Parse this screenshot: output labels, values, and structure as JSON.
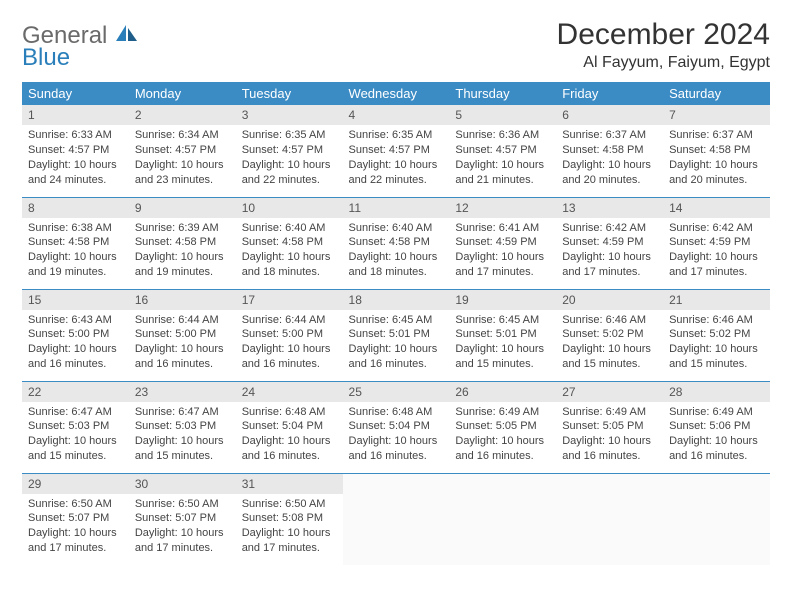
{
  "logo": {
    "text1": "General",
    "text2": "Blue"
  },
  "header": {
    "month_title": "December 2024",
    "location": "Al Fayyum, Faiyum, Egypt"
  },
  "colors": {
    "header_bg": "#3b8bc4",
    "header_text": "#ffffff",
    "daynum_bg": "#e8e8e8",
    "row_divider": "#3b8bc4",
    "logo_gray": "#6a6a6a",
    "logo_blue": "#2a7fba"
  },
  "weekdays": [
    "Sunday",
    "Monday",
    "Tuesday",
    "Wednesday",
    "Thursday",
    "Friday",
    "Saturday"
  ],
  "weeks": [
    [
      {
        "n": "1",
        "sunrise": "Sunrise: 6:33 AM",
        "sunset": "Sunset: 4:57 PM",
        "day1": "Daylight: 10 hours",
        "day2": "and 24 minutes."
      },
      {
        "n": "2",
        "sunrise": "Sunrise: 6:34 AM",
        "sunset": "Sunset: 4:57 PM",
        "day1": "Daylight: 10 hours",
        "day2": "and 23 minutes."
      },
      {
        "n": "3",
        "sunrise": "Sunrise: 6:35 AM",
        "sunset": "Sunset: 4:57 PM",
        "day1": "Daylight: 10 hours",
        "day2": "and 22 minutes."
      },
      {
        "n": "4",
        "sunrise": "Sunrise: 6:35 AM",
        "sunset": "Sunset: 4:57 PM",
        "day1": "Daylight: 10 hours",
        "day2": "and 22 minutes."
      },
      {
        "n": "5",
        "sunrise": "Sunrise: 6:36 AM",
        "sunset": "Sunset: 4:57 PM",
        "day1": "Daylight: 10 hours",
        "day2": "and 21 minutes."
      },
      {
        "n": "6",
        "sunrise": "Sunrise: 6:37 AM",
        "sunset": "Sunset: 4:58 PM",
        "day1": "Daylight: 10 hours",
        "day2": "and 20 minutes."
      },
      {
        "n": "7",
        "sunrise": "Sunrise: 6:37 AM",
        "sunset": "Sunset: 4:58 PM",
        "day1": "Daylight: 10 hours",
        "day2": "and 20 minutes."
      }
    ],
    [
      {
        "n": "8",
        "sunrise": "Sunrise: 6:38 AM",
        "sunset": "Sunset: 4:58 PM",
        "day1": "Daylight: 10 hours",
        "day2": "and 19 minutes."
      },
      {
        "n": "9",
        "sunrise": "Sunrise: 6:39 AM",
        "sunset": "Sunset: 4:58 PM",
        "day1": "Daylight: 10 hours",
        "day2": "and 19 minutes."
      },
      {
        "n": "10",
        "sunrise": "Sunrise: 6:40 AM",
        "sunset": "Sunset: 4:58 PM",
        "day1": "Daylight: 10 hours",
        "day2": "and 18 minutes."
      },
      {
        "n": "11",
        "sunrise": "Sunrise: 6:40 AM",
        "sunset": "Sunset: 4:58 PM",
        "day1": "Daylight: 10 hours",
        "day2": "and 18 minutes."
      },
      {
        "n": "12",
        "sunrise": "Sunrise: 6:41 AM",
        "sunset": "Sunset: 4:59 PM",
        "day1": "Daylight: 10 hours",
        "day2": "and 17 minutes."
      },
      {
        "n": "13",
        "sunrise": "Sunrise: 6:42 AM",
        "sunset": "Sunset: 4:59 PM",
        "day1": "Daylight: 10 hours",
        "day2": "and 17 minutes."
      },
      {
        "n": "14",
        "sunrise": "Sunrise: 6:42 AM",
        "sunset": "Sunset: 4:59 PM",
        "day1": "Daylight: 10 hours",
        "day2": "and 17 minutes."
      }
    ],
    [
      {
        "n": "15",
        "sunrise": "Sunrise: 6:43 AM",
        "sunset": "Sunset: 5:00 PM",
        "day1": "Daylight: 10 hours",
        "day2": "and 16 minutes."
      },
      {
        "n": "16",
        "sunrise": "Sunrise: 6:44 AM",
        "sunset": "Sunset: 5:00 PM",
        "day1": "Daylight: 10 hours",
        "day2": "and 16 minutes."
      },
      {
        "n": "17",
        "sunrise": "Sunrise: 6:44 AM",
        "sunset": "Sunset: 5:00 PM",
        "day1": "Daylight: 10 hours",
        "day2": "and 16 minutes."
      },
      {
        "n": "18",
        "sunrise": "Sunrise: 6:45 AM",
        "sunset": "Sunset: 5:01 PM",
        "day1": "Daylight: 10 hours",
        "day2": "and 16 minutes."
      },
      {
        "n": "19",
        "sunrise": "Sunrise: 6:45 AM",
        "sunset": "Sunset: 5:01 PM",
        "day1": "Daylight: 10 hours",
        "day2": "and 15 minutes."
      },
      {
        "n": "20",
        "sunrise": "Sunrise: 6:46 AM",
        "sunset": "Sunset: 5:02 PM",
        "day1": "Daylight: 10 hours",
        "day2": "and 15 minutes."
      },
      {
        "n": "21",
        "sunrise": "Sunrise: 6:46 AM",
        "sunset": "Sunset: 5:02 PM",
        "day1": "Daylight: 10 hours",
        "day2": "and 15 minutes."
      }
    ],
    [
      {
        "n": "22",
        "sunrise": "Sunrise: 6:47 AM",
        "sunset": "Sunset: 5:03 PM",
        "day1": "Daylight: 10 hours",
        "day2": "and 15 minutes."
      },
      {
        "n": "23",
        "sunrise": "Sunrise: 6:47 AM",
        "sunset": "Sunset: 5:03 PM",
        "day1": "Daylight: 10 hours",
        "day2": "and 15 minutes."
      },
      {
        "n": "24",
        "sunrise": "Sunrise: 6:48 AM",
        "sunset": "Sunset: 5:04 PM",
        "day1": "Daylight: 10 hours",
        "day2": "and 16 minutes."
      },
      {
        "n": "25",
        "sunrise": "Sunrise: 6:48 AM",
        "sunset": "Sunset: 5:04 PM",
        "day1": "Daylight: 10 hours",
        "day2": "and 16 minutes."
      },
      {
        "n": "26",
        "sunrise": "Sunrise: 6:49 AM",
        "sunset": "Sunset: 5:05 PM",
        "day1": "Daylight: 10 hours",
        "day2": "and 16 minutes."
      },
      {
        "n": "27",
        "sunrise": "Sunrise: 6:49 AM",
        "sunset": "Sunset: 5:05 PM",
        "day1": "Daylight: 10 hours",
        "day2": "and 16 minutes."
      },
      {
        "n": "28",
        "sunrise": "Sunrise: 6:49 AM",
        "sunset": "Sunset: 5:06 PM",
        "day1": "Daylight: 10 hours",
        "day2": "and 16 minutes."
      }
    ],
    [
      {
        "n": "29",
        "sunrise": "Sunrise: 6:50 AM",
        "sunset": "Sunset: 5:07 PM",
        "day1": "Daylight: 10 hours",
        "day2": "and 17 minutes."
      },
      {
        "n": "30",
        "sunrise": "Sunrise: 6:50 AM",
        "sunset": "Sunset: 5:07 PM",
        "day1": "Daylight: 10 hours",
        "day2": "and 17 minutes."
      },
      {
        "n": "31",
        "sunrise": "Sunrise: 6:50 AM",
        "sunset": "Sunset: 5:08 PM",
        "day1": "Daylight: 10 hours",
        "day2": "and 17 minutes."
      },
      null,
      null,
      null,
      null
    ]
  ]
}
